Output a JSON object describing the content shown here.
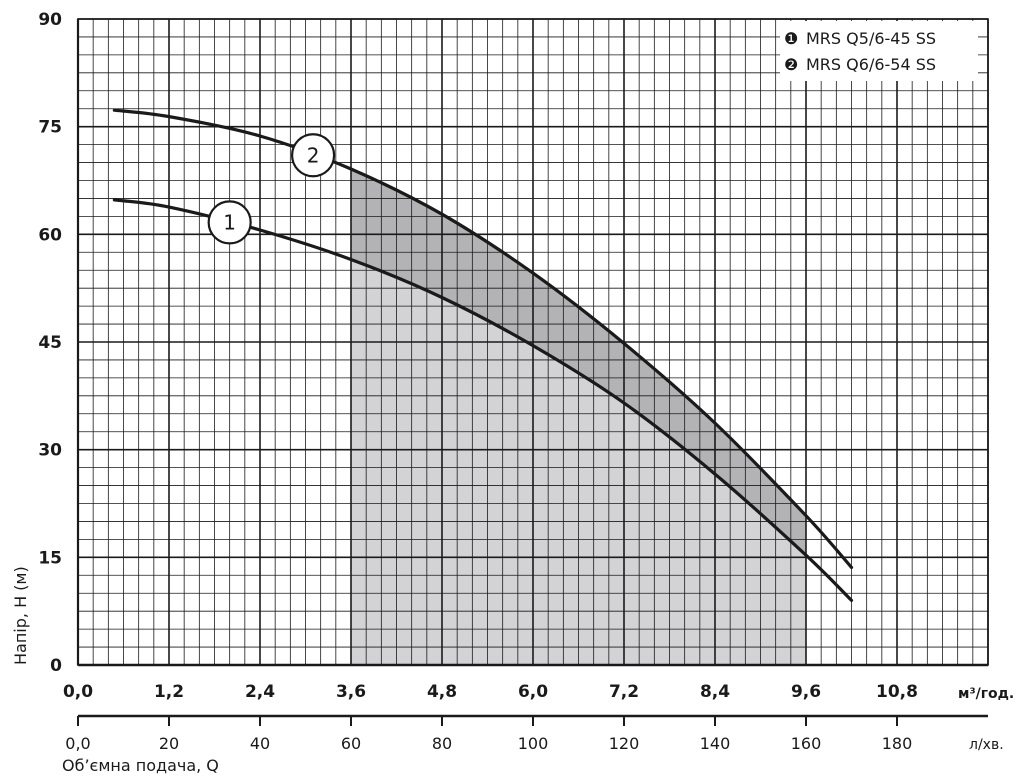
{
  "chart_data": {
    "type": "line",
    "ylabel": "Напір, H (м)",
    "xlabel": "Об’ємна подача, Q",
    "x_unit": "м³/год.",
    "x2_unit": "л/хв.",
    "ylim": [
      0,
      90
    ],
    "xlim": [
      0,
      12
    ],
    "x2lim": [
      0,
      200
    ],
    "y_ticks": [
      "0",
      "15",
      "30",
      "45",
      "60",
      "75",
      "90"
    ],
    "x_ticks": [
      "0,0",
      "1,2",
      "2,4",
      "3,6",
      "4,8",
      "6,0",
      "7,2",
      "8,4",
      "9,6",
      "10,8"
    ],
    "x2_ticks": [
      "0,0",
      "20",
      "40",
      "60",
      "80",
      "100",
      "120",
      "140",
      "160",
      "180"
    ],
    "grid": true,
    "legend": {
      "placement": "top-right",
      "items": [
        {
          "symbol": "❶",
          "label": "MRS Q5/6-45 SS"
        },
        {
          "symbol": "❷",
          "label": "MRS Q6/6-54 SS"
        }
      ]
    },
    "operating_range": [
      3.6,
      9.6
    ],
    "series": [
      {
        "marker_label": "1",
        "marker_x": 2.0,
        "x": [
          0.48,
          1.2,
          2.4,
          3.6,
          4.8,
          6.0,
          7.2,
          8.4,
          9.6,
          10.2
        ],
        "y": [
          64.8,
          63.8,
          60.6,
          56.5,
          51.2,
          44.5,
          36.5,
          26.6,
          15.3,
          9.0
        ]
      },
      {
        "marker_label": "2",
        "marker_x": 3.1,
        "x": [
          0.48,
          1.2,
          2.4,
          3.6,
          4.8,
          6.0,
          7.2,
          8.4,
          9.6,
          10.2
        ],
        "y": [
          77.3,
          76.4,
          73.7,
          69.1,
          62.8,
          54.6,
          44.8,
          33.7,
          20.8,
          13.6
        ]
      }
    ]
  }
}
